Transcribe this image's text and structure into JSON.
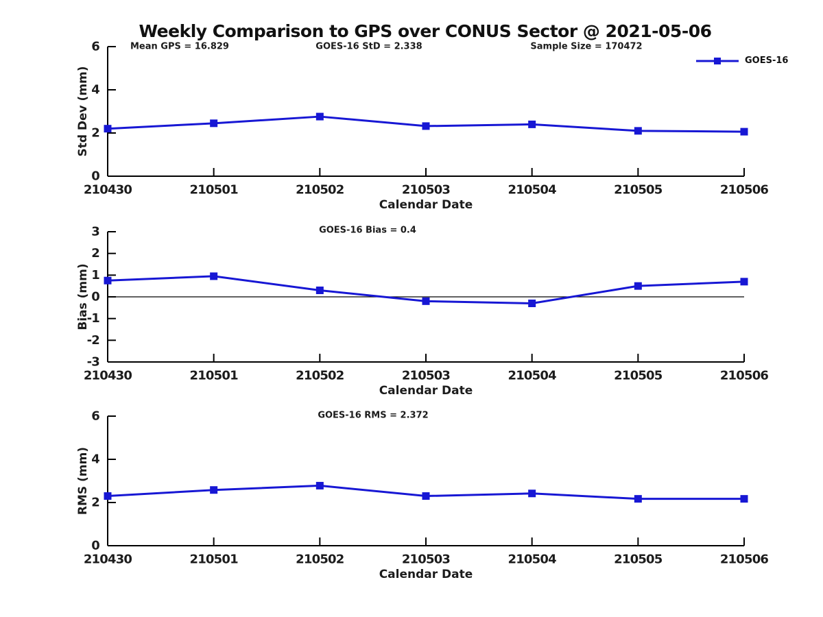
{
  "title": "Weekly Comparison to GPS over CONUS Sector @ 2021-05-06",
  "legend": {
    "label": "GOES-16"
  },
  "colors": {
    "series": "#1717d4",
    "axis": "#000000",
    "text": "#1c1c1c",
    "background": "#ffffff"
  },
  "chart_data": [
    {
      "type": "line",
      "id": "std-dev",
      "annotations": [
        "Mean GPS = 16.829",
        "GOES-16 StD = 2.338",
        "Sample Size = 170472"
      ],
      "categories": [
        "210430",
        "210501",
        "210502",
        "210503",
        "210504",
        "210505",
        "210506"
      ],
      "series": [
        {
          "name": "GOES-16",
          "values": [
            2.2,
            2.45,
            2.76,
            2.32,
            2.4,
            2.1,
            2.06
          ]
        }
      ],
      "xlabel": "Calendar Date",
      "ylabel": "Std Dev (mm)",
      "ylim": [
        0,
        6
      ],
      "yticks": [
        0,
        2,
        4,
        6
      ],
      "zero_line": false,
      "grid": false,
      "legend_entry": "GOES-16",
      "legend_position": "top-right"
    },
    {
      "type": "line",
      "id": "bias",
      "annotations": [
        "GOES-16 Bias  = 0.4"
      ],
      "categories": [
        "210430",
        "210501",
        "210502",
        "210503",
        "210504",
        "210505",
        "210506"
      ],
      "series": [
        {
          "name": "GOES-16",
          "values": [
            0.75,
            0.95,
            0.3,
            -0.2,
            -0.3,
            0.5,
            0.7
          ]
        }
      ],
      "xlabel": "Calendar Date",
      "ylabel": "Bias (mm)",
      "ylim": [
        -3,
        3
      ],
      "yticks": [
        -3,
        -2,
        -1,
        0,
        1,
        2,
        3
      ],
      "zero_line": true,
      "grid": false
    },
    {
      "type": "line",
      "id": "rms",
      "annotations": [
        "GOES-16 RMS = 2.372"
      ],
      "categories": [
        "210430",
        "210501",
        "210502",
        "210503",
        "210504",
        "210505",
        "210506"
      ],
      "series": [
        {
          "name": "GOES-16",
          "values": [
            2.3,
            2.58,
            2.78,
            2.3,
            2.42,
            2.17,
            2.17
          ]
        }
      ],
      "xlabel": "Calendar Date",
      "ylabel": "RMS (mm)",
      "ylim": [
        0,
        6
      ],
      "yticks": [
        0,
        2,
        4,
        6
      ],
      "zero_line": false,
      "grid": false
    }
  ]
}
